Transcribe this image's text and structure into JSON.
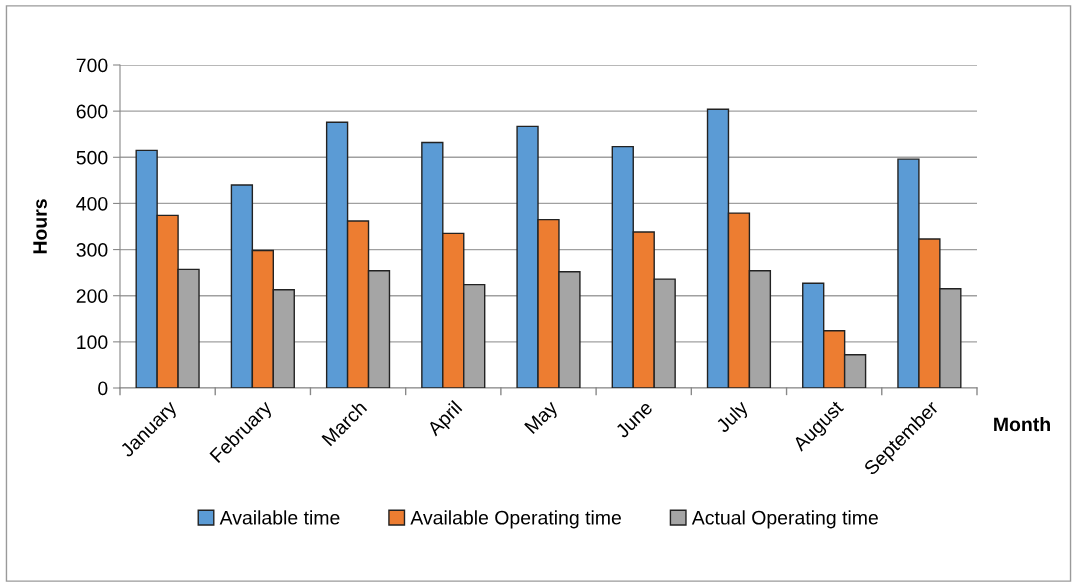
{
  "chart_data": {
    "type": "bar",
    "xlabel": "Month",
    "ylabel": "Hours",
    "categories": [
      "January",
      "February",
      "March",
      "April",
      "May",
      "June",
      "July",
      "August",
      "September"
    ],
    "series": [
      {
        "name": "Available time",
        "color": "#5b9bd5",
        "values": [
          515,
          440,
          576,
          532,
          567,
          523,
          604,
          227,
          496
        ]
      },
      {
        "name": "Available Operating time",
        "color": "#ed7d31",
        "values": [
          374,
          298,
          362,
          335,
          365,
          338,
          379,
          124,
          323
        ]
      },
      {
        "name": "Actual Operating time",
        "color": "#a5a5a5",
        "values": [
          257,
          213,
          254,
          224,
          252,
          236,
          254,
          72,
          215
        ]
      }
    ],
    "ylim": [
      0,
      700
    ],
    "yticks": [
      0,
      100,
      200,
      300,
      400,
      500,
      600,
      700
    ],
    "grid": "y",
    "legend": "bottom"
  }
}
